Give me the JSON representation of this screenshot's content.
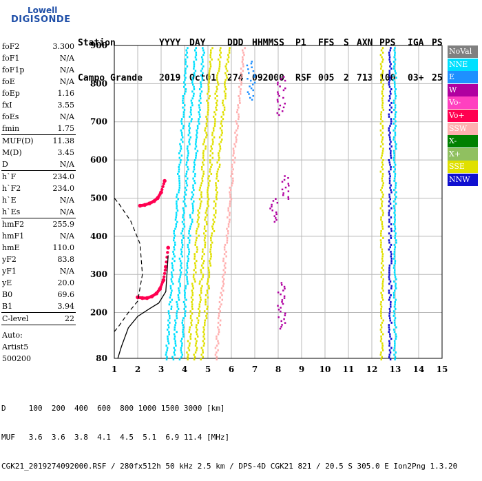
{
  "logo": {
    "line1": "Lowell",
    "line2": "DIGISONDE"
  },
  "header": {
    "row1": [
      "Station",
      "YYYY",
      "DAY",
      "DDD",
      "HHMMSS",
      "P1",
      "FFS",
      "S",
      "AXN",
      "PPS",
      "IGA",
      "PS"
    ],
    "row2": [
      "Campo Grande",
      "2019",
      "Oct01",
      "274",
      "092000",
      "RSF",
      "005",
      "2",
      "713",
      "100",
      "03+",
      "25"
    ]
  },
  "params": {
    "group1": [
      {
        "k": "foF2",
        "v": "3.300"
      },
      {
        "k": "foF1",
        "v": "N/A"
      },
      {
        "k": "foF1p",
        "v": "N/A"
      },
      {
        "k": "foE",
        "v": "N/A"
      },
      {
        "k": "foEp",
        "v": "1.16"
      },
      {
        "k": "fxI",
        "v": "3.55"
      },
      {
        "k": "foEs",
        "v": "N/A"
      },
      {
        "k": "fmin",
        "v": "1.75"
      }
    ],
    "group2": [
      {
        "k": "MUF(D)",
        "v": "11.38"
      },
      {
        "k": "M(D)",
        "v": "3.45"
      },
      {
        "k": "D",
        "v": "N/A"
      }
    ],
    "group3": [
      {
        "k": "h`F",
        "v": "234.0"
      },
      {
        "k": "h`F2",
        "v": "234.0"
      },
      {
        "k": "h`E",
        "v": "N/A"
      },
      {
        "k": "h`Es",
        "v": "N/A"
      }
    ],
    "group4": [
      {
        "k": "hmF2",
        "v": "255.9"
      },
      {
        "k": "hmF1",
        "v": "N/A"
      },
      {
        "k": "hmE",
        "v": "110.0"
      },
      {
        "k": "yF2",
        "v": "83.8"
      },
      {
        "k": "yF1",
        "v": "N/A"
      },
      {
        "k": "yE",
        "v": "20.0"
      },
      {
        "k": "B0",
        "v": "69.6"
      },
      {
        "k": "B1",
        "v": "3.94"
      }
    ],
    "group5": [
      {
        "k": "C-level",
        "v": "22"
      }
    ],
    "tail": [
      "Auto:",
      "Artist5",
      "500200"
    ]
  },
  "legend": [
    {
      "label": "NoVal",
      "color": "#808080"
    },
    {
      "label": "NNE",
      "color": "#00e0ff"
    },
    {
      "label": "E",
      "color": "#1e90ff"
    },
    {
      "label": "W",
      "color": "#b000a0"
    },
    {
      "label": "Vo-",
      "color": "#ff40c0"
    },
    {
      "label": "Vo+",
      "color": "#ff0050"
    },
    {
      "label": "SSW",
      "color": "#ffb0b0"
    },
    {
      "label": "X-",
      "color": "#008000"
    },
    {
      "label": "X+",
      "color": "#90c060"
    },
    {
      "label": "SSE",
      "color": "#e0e000"
    },
    {
      "label": "NNW",
      "color": "#1010d0"
    }
  ],
  "bottom": {
    "line1": "D     100  200  400  600  800 1000 1500 3000 [km]",
    "line2": "MUF   3.6  3.6  3.8  4.1  4.5  5.1  6.9 11.4 [MHz]",
    "line3": "CGK21_2019274092000.RSF / 280fx512h 50 kHz 2.5 km / DPS-4D CGK21 821 / 20.5 S 305.0 E Ion2Png 1.3.20"
  },
  "chart_data": {
    "type": "scatter",
    "xlim": [
      1,
      15
    ],
    "ylim": [
      80,
      900
    ],
    "x_ticks": [
      1,
      2,
      3,
      4,
      5,
      6,
      7,
      8,
      9,
      10,
      11,
      12,
      13,
      14,
      15
    ],
    "y_ticks": [
      80,
      200,
      300,
      400,
      500,
      600,
      700,
      800,
      900
    ],
    "grid": true,
    "ordinary_trace": {
      "color": "#ff0050",
      "x": [
        2.0,
        2.2,
        2.4,
        2.6,
        2.8,
        2.95,
        3.1,
        3.2,
        3.3
      ],
      "y": [
        240,
        238,
        238,
        242,
        250,
        262,
        285,
        320,
        370
      ]
    },
    "second_hop_trace": {
      "color": "#ff0050",
      "x": [
        2.1,
        2.3,
        2.5,
        2.7,
        2.85,
        3.0,
        3.15
      ],
      "y": [
        480,
        482,
        486,
        492,
        500,
        515,
        545
      ]
    },
    "profile_solid": {
      "x": [
        1.15,
        1.3,
        1.6,
        2.0,
        2.5,
        2.9,
        3.2,
        3.3
      ],
      "y": [
        80,
        110,
        160,
        190,
        210,
        225,
        255,
        350
      ]
    },
    "profile_dashed": {
      "x": [
        1.0,
        1.2,
        1.6,
        2.0,
        2.2,
        2.1,
        1.7,
        1.2,
        1.0
      ],
      "y": [
        150,
        165,
        200,
        230,
        300,
        380,
        440,
        485,
        500
      ]
    },
    "interference_bands": [
      {
        "x": 4.1,
        "color": "#00e0ff"
      },
      {
        "x": 4.45,
        "color": "#00e0ff"
      },
      {
        "x": 4.8,
        "color": "#00e0ff"
      },
      {
        "x": 5.15,
        "color": "#e0e000"
      },
      {
        "x": 5.5,
        "color": "#e0e000"
      },
      {
        "x": 5.85,
        "color": "#e0e000"
      },
      {
        "x": 6.5,
        "color": "#ffb0b0"
      },
      {
        "x": 12.4,
        "color": "#e0e000"
      },
      {
        "x": 12.75,
        "color": "#1010d0"
      },
      {
        "x": 12.95,
        "color": "#00e0ff"
      }
    ],
    "scatter_clusters": [
      {
        "x": 8.1,
        "ylo": 720,
        "yhi": 820,
        "color": "#b000a0"
      },
      {
        "x": 8.1,
        "ylo": 160,
        "yhi": 280,
        "color": "#b000a0"
      },
      {
        "x": 7.8,
        "ylo": 440,
        "yhi": 500,
        "color": "#b000a0"
      },
      {
        "x": 8.3,
        "ylo": 500,
        "yhi": 560,
        "color": "#b000a0"
      },
      {
        "x": 6.8,
        "ylo": 760,
        "yhi": 860,
        "color": "#1e90ff"
      }
    ]
  }
}
